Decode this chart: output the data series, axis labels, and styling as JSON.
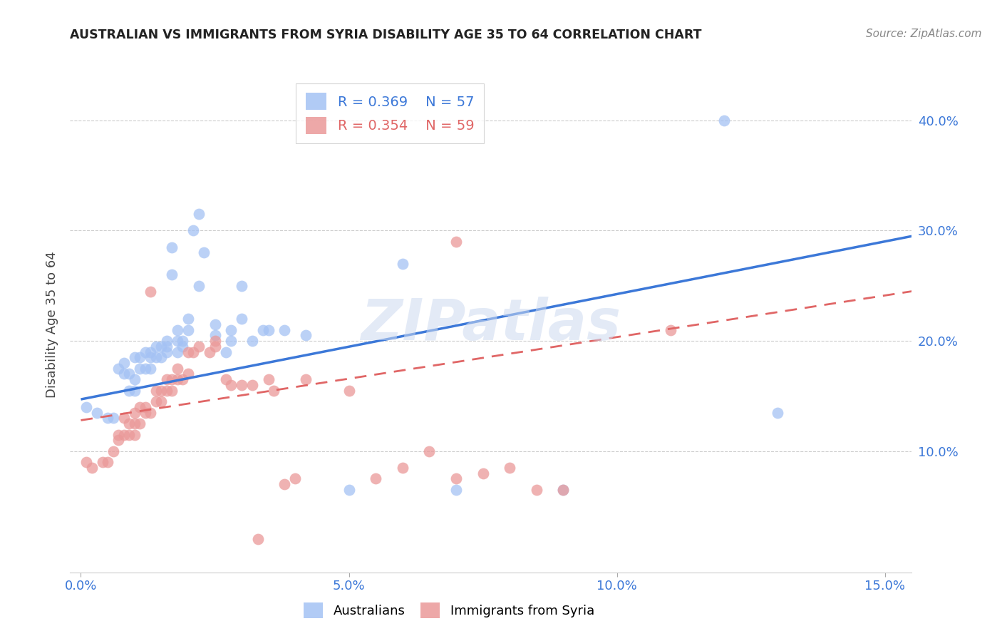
{
  "title": "AUSTRALIAN VS IMMIGRANTS FROM SYRIA DISABILITY AGE 35 TO 64 CORRELATION CHART",
  "source": "Source: ZipAtlas.com",
  "ylabel": "Disability Age 35 to 64",
  "xlabel_ticks": [
    "0.0%",
    "5.0%",
    "10.0%",
    "15.0%"
  ],
  "xlabel_vals": [
    0.0,
    0.05,
    0.1,
    0.15
  ],
  "ylabel_ticks": [
    "10.0%",
    "20.0%",
    "30.0%",
    "40.0%"
  ],
  "ylabel_vals": [
    0.1,
    0.2,
    0.3,
    0.4
  ],
  "xlim": [
    -0.002,
    0.155
  ],
  "ylim": [
    -0.01,
    0.44
  ],
  "blue_R": 0.369,
  "blue_N": 57,
  "pink_R": 0.354,
  "pink_N": 59,
  "blue_color": "#a4c2f4",
  "pink_color": "#ea9999",
  "blue_line_color": "#3c78d8",
  "pink_line_color": "#e06666",
  "legend_text_blue": "#3c78d8",
  "legend_text_pink": "#e06666",
  "watermark": "ZIPatlas",
  "background_color": "#ffffff",
  "grid_color": "#cccccc",
  "blue_x": [
    0.001,
    0.003,
    0.005,
    0.006,
    0.007,
    0.008,
    0.008,
    0.009,
    0.009,
    0.01,
    0.01,
    0.01,
    0.011,
    0.011,
    0.012,
    0.012,
    0.013,
    0.013,
    0.013,
    0.014,
    0.014,
    0.015,
    0.015,
    0.016,
    0.016,
    0.016,
    0.017,
    0.017,
    0.018,
    0.018,
    0.018,
    0.019,
    0.019,
    0.02,
    0.02,
    0.021,
    0.022,
    0.022,
    0.023,
    0.025,
    0.025,
    0.027,
    0.028,
    0.028,
    0.03,
    0.03,
    0.032,
    0.034,
    0.035,
    0.038,
    0.042,
    0.05,
    0.06,
    0.07,
    0.09,
    0.12,
    0.13
  ],
  "blue_y": [
    0.14,
    0.135,
    0.13,
    0.13,
    0.175,
    0.17,
    0.18,
    0.155,
    0.17,
    0.155,
    0.165,
    0.185,
    0.175,
    0.185,
    0.175,
    0.19,
    0.175,
    0.185,
    0.19,
    0.185,
    0.195,
    0.185,
    0.195,
    0.19,
    0.195,
    0.2,
    0.26,
    0.285,
    0.19,
    0.2,
    0.21,
    0.195,
    0.2,
    0.21,
    0.22,
    0.3,
    0.25,
    0.315,
    0.28,
    0.205,
    0.215,
    0.19,
    0.2,
    0.21,
    0.22,
    0.25,
    0.2,
    0.21,
    0.21,
    0.21,
    0.205,
    0.065,
    0.27,
    0.065,
    0.065,
    0.4,
    0.135
  ],
  "pink_x": [
    0.001,
    0.002,
    0.004,
    0.005,
    0.006,
    0.007,
    0.007,
    0.008,
    0.008,
    0.009,
    0.009,
    0.01,
    0.01,
    0.01,
    0.011,
    0.011,
    0.012,
    0.012,
    0.013,
    0.013,
    0.014,
    0.014,
    0.015,
    0.015,
    0.016,
    0.016,
    0.017,
    0.017,
    0.018,
    0.018,
    0.019,
    0.02,
    0.02,
    0.021,
    0.022,
    0.024,
    0.025,
    0.025,
    0.027,
    0.028,
    0.03,
    0.032,
    0.033,
    0.035,
    0.036,
    0.038,
    0.04,
    0.042,
    0.05,
    0.055,
    0.06,
    0.065,
    0.07,
    0.07,
    0.075,
    0.08,
    0.085,
    0.09,
    0.11
  ],
  "pink_y": [
    0.09,
    0.085,
    0.09,
    0.09,
    0.1,
    0.11,
    0.115,
    0.115,
    0.13,
    0.115,
    0.125,
    0.115,
    0.125,
    0.135,
    0.125,
    0.14,
    0.135,
    0.14,
    0.135,
    0.245,
    0.145,
    0.155,
    0.145,
    0.155,
    0.155,
    0.165,
    0.155,
    0.165,
    0.165,
    0.175,
    0.165,
    0.17,
    0.19,
    0.19,
    0.195,
    0.19,
    0.195,
    0.2,
    0.165,
    0.16,
    0.16,
    0.16,
    0.02,
    0.165,
    0.155,
    0.07,
    0.075,
    0.165,
    0.155,
    0.075,
    0.085,
    0.1,
    0.075,
    0.29,
    0.08,
    0.085,
    0.065,
    0.065,
    0.21
  ],
  "blue_line_x0": 0.0,
  "blue_line_y0": 0.147,
  "blue_line_x1": 0.155,
  "blue_line_y1": 0.295,
  "pink_line_x0": 0.0,
  "pink_line_y0": 0.128,
  "pink_line_x1": 0.155,
  "pink_line_y1": 0.245
}
